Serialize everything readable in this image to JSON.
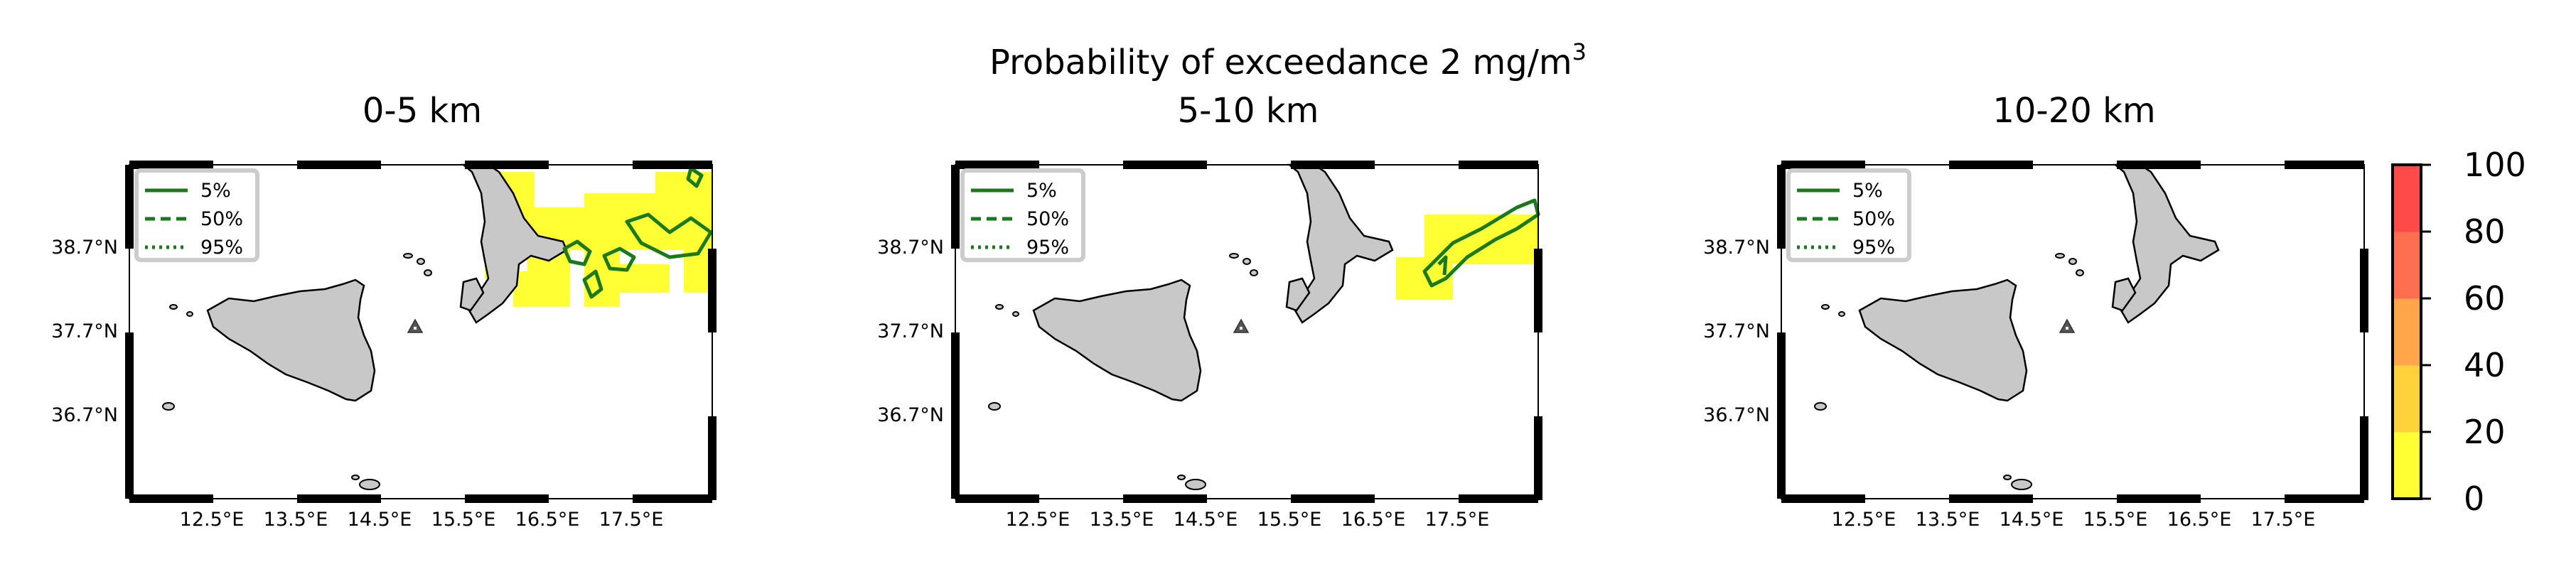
{
  "figure": {
    "title_main": "Probability of exceedance 2 mg/m",
    "title_sup": "3"
  },
  "panels": [
    {
      "title": "0-5 km"
    },
    {
      "title": "5-10 km"
    },
    {
      "title": "10-20 km"
    }
  ],
  "axes": {
    "lat_ticks": [
      "38.7°N",
      "37.7°N",
      "36.7°N"
    ],
    "lon_ticks": [
      "12.5°E",
      "13.5°E",
      "14.5°E",
      "15.5°E",
      "16.5°E",
      "17.5°E"
    ]
  },
  "legend": {
    "entries": [
      {
        "label": "5%",
        "style": "solid"
      },
      {
        "label": "50%",
        "style": "dashed"
      },
      {
        "label": "95%",
        "style": "dotted"
      }
    ]
  },
  "colorbar": {
    "ticks": [
      "100",
      "80",
      "60",
      "40",
      "20",
      "0"
    ],
    "range": [
      0,
      100
    ],
    "colors": [
      "#ffff33",
      "#ffd23c",
      "#ffa64a",
      "#ff6e4e",
      "#ff4a4a"
    ]
  },
  "colors": {
    "land": "#c8c8c8",
    "contour": "#1a7a1a",
    "exceedance_fill": "#ffff33",
    "volcano_marker": "#555555"
  },
  "markers": {
    "volcano_icon": "triangle-volcano-icon"
  }
}
